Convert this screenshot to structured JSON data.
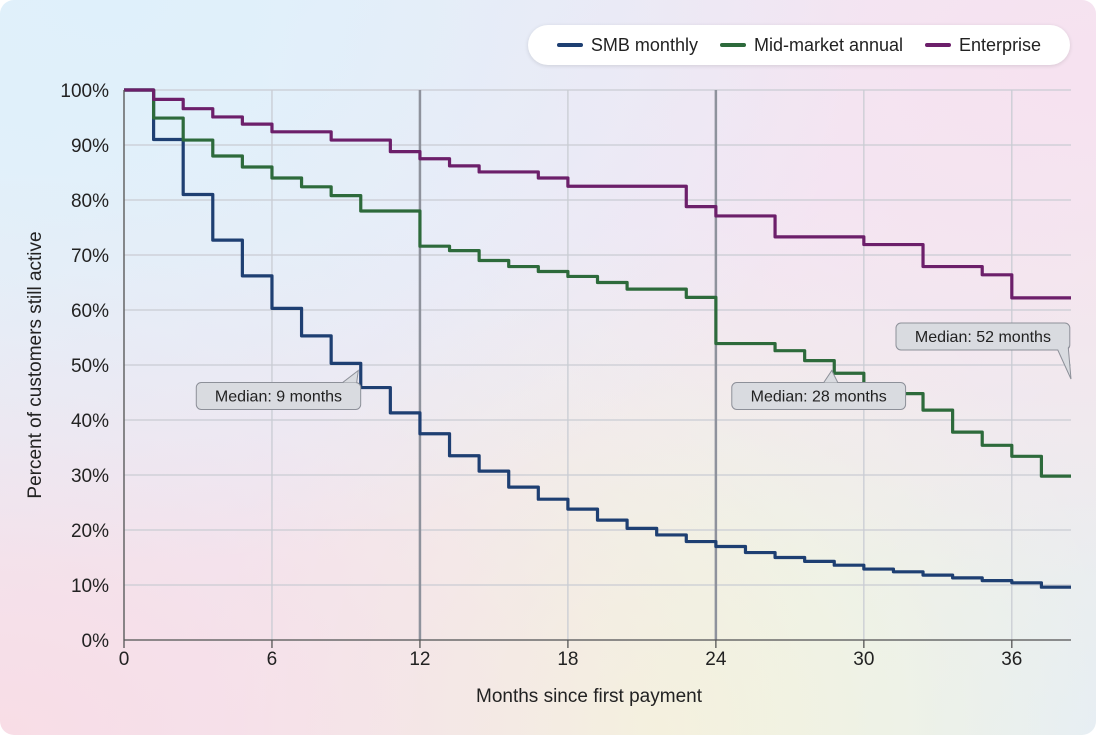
{
  "chart_data": {
    "type": "line",
    "step": true,
    "xlabel": "Months since first payment",
    "ylabel": "Percent of customers still active",
    "xlim": [
      0,
      38.4
    ],
    "ylim": [
      0,
      100
    ],
    "xticks": [
      0,
      6,
      12,
      18,
      24,
      30,
      36
    ],
    "xtick_labels": [
      "0",
      "6",
      "12",
      "18",
      "24",
      "30",
      "36"
    ],
    "yticks": [
      0,
      10,
      20,
      30,
      40,
      50,
      60,
      70,
      80,
      90,
      100
    ],
    "ytick_labels": [
      "0%",
      "10%",
      "20%",
      "30%",
      "40%",
      "50%",
      "60%",
      "70%",
      "80%",
      "90%",
      "100%"
    ],
    "grid": true,
    "reference_lines_x": [
      12,
      24
    ],
    "legend_placement": "top-right",
    "step_interval_months": 1.2,
    "series": [
      {
        "name": "SMB monthly",
        "color": "#1e3f72",
        "values": [
          100,
          91,
          81,
          72.7,
          66.2,
          60.3,
          55.3,
          50.3,
          45.9,
          41.3,
          37.5,
          33.5,
          30.7,
          27.8,
          25.6,
          23.8,
          21.8,
          20.3,
          19.1,
          17.9,
          17,
          15.9,
          15,
          14.3,
          13.6,
          12.9,
          12.4,
          11.8,
          11.3,
          10.8,
          10.4,
          9.6
        ]
      },
      {
        "name": "Mid-market annual",
        "color": "#2d6a3b",
        "values": [
          100,
          94.9,
          90.9,
          88,
          86,
          84,
          82.4,
          80.8,
          78,
          78,
          71.6,
          70.8,
          69,
          67.9,
          67,
          66.1,
          65,
          63.8,
          63.8,
          62.3,
          53.9,
          53.9,
          52.6,
          50.8,
          48.5,
          46.5,
          44.8,
          41.8,
          37.8,
          35.4,
          33.4,
          29.8
        ]
      },
      {
        "name": "Enterprise",
        "color": "#6c1f6a",
        "values": [
          100,
          98.3,
          96.6,
          95.1,
          93.8,
          92.4,
          92.4,
          90.9,
          90.9,
          88.8,
          87.5,
          86.2,
          85.1,
          85.1,
          84,
          82.5,
          82.5,
          82.5,
          82.5,
          78.8,
          77.1,
          77.1,
          73.3,
          73.3,
          73.3,
          71.9,
          71.9,
          67.9,
          67.9,
          66.4,
          62.2,
          62.2
        ]
      }
    ],
    "annotations": [
      {
        "text": "Median: 9 months",
        "x": 9.5,
        "y": 49
      },
      {
        "text": "Median: 28 months",
        "x": 28.7,
        "y": 49
      },
      {
        "text": "Median: 52 months",
        "x": 38.4,
        "y": 50
      }
    ]
  }
}
